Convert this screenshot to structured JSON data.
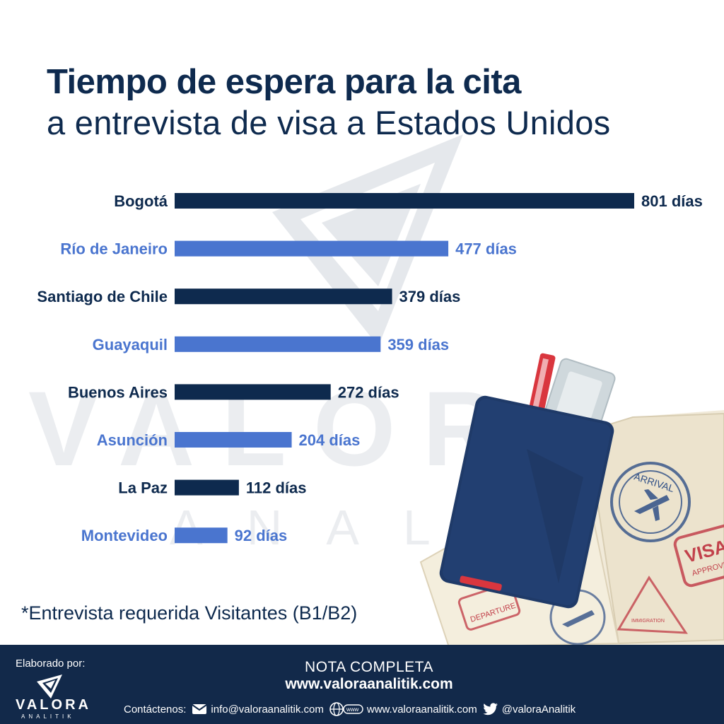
{
  "title_line1": "Tiempo de espera para la cita",
  "title_line2": "a entrevista de visa a Estados Unidos",
  "footnote": "*Entrevista requerida Visitantes (B1/B2)",
  "colors": {
    "dark_bar": "#0e2a4e",
    "light_bar": "#4a75cf",
    "footer_bg": "#12294a",
    "passport": "#1f3a68"
  },
  "chart_data": {
    "type": "bar",
    "orientation": "horizontal",
    "categories": [
      "Bogotá",
      "Río de Janeiro",
      "Santiago de Chile",
      "Guayaquil",
      "Buenos Aires",
      "Asunción",
      "La Paz",
      "Montevideo"
    ],
    "values": [
      801,
      477,
      379,
      359,
      272,
      204,
      112,
      92
    ],
    "value_labels": [
      "801 días",
      "477 días",
      "379 días",
      "359 días",
      "272 días",
      "204 días",
      "112 días",
      "92 días"
    ],
    "bar_colors": [
      "dark",
      "light",
      "dark",
      "light",
      "dark",
      "light",
      "dark",
      "light"
    ],
    "xlim": [
      0,
      801
    ],
    "grid": false,
    "legend": "none"
  },
  "watermark": {
    "word": "VALORA",
    "sub": "ANALITIK"
  },
  "illustration": {
    "stamp_arrival": "ARRIVAL",
    "stamp_visa": "VISA",
    "stamp_approved": "APPROVED",
    "stamp_departure": "DEPARTURE",
    "stamp_immigration": "IMMIGRATION",
    "icon": "passport-illustration"
  },
  "footer": {
    "elaborado": "Elaborado por:",
    "brand": "VALORA",
    "brand_sub": "ANALITIK",
    "nota": "NOTA COMPLETA",
    "site": "www.valoraanalitik.com",
    "contact_label": "Contáctenos:",
    "email": "info@valoraanalitik.com",
    "web": "www.valoraanalitik.com",
    "twitter": "@valoraAnalitik",
    "icons": [
      "mail-icon",
      "globe-icon",
      "twitter-icon"
    ]
  }
}
